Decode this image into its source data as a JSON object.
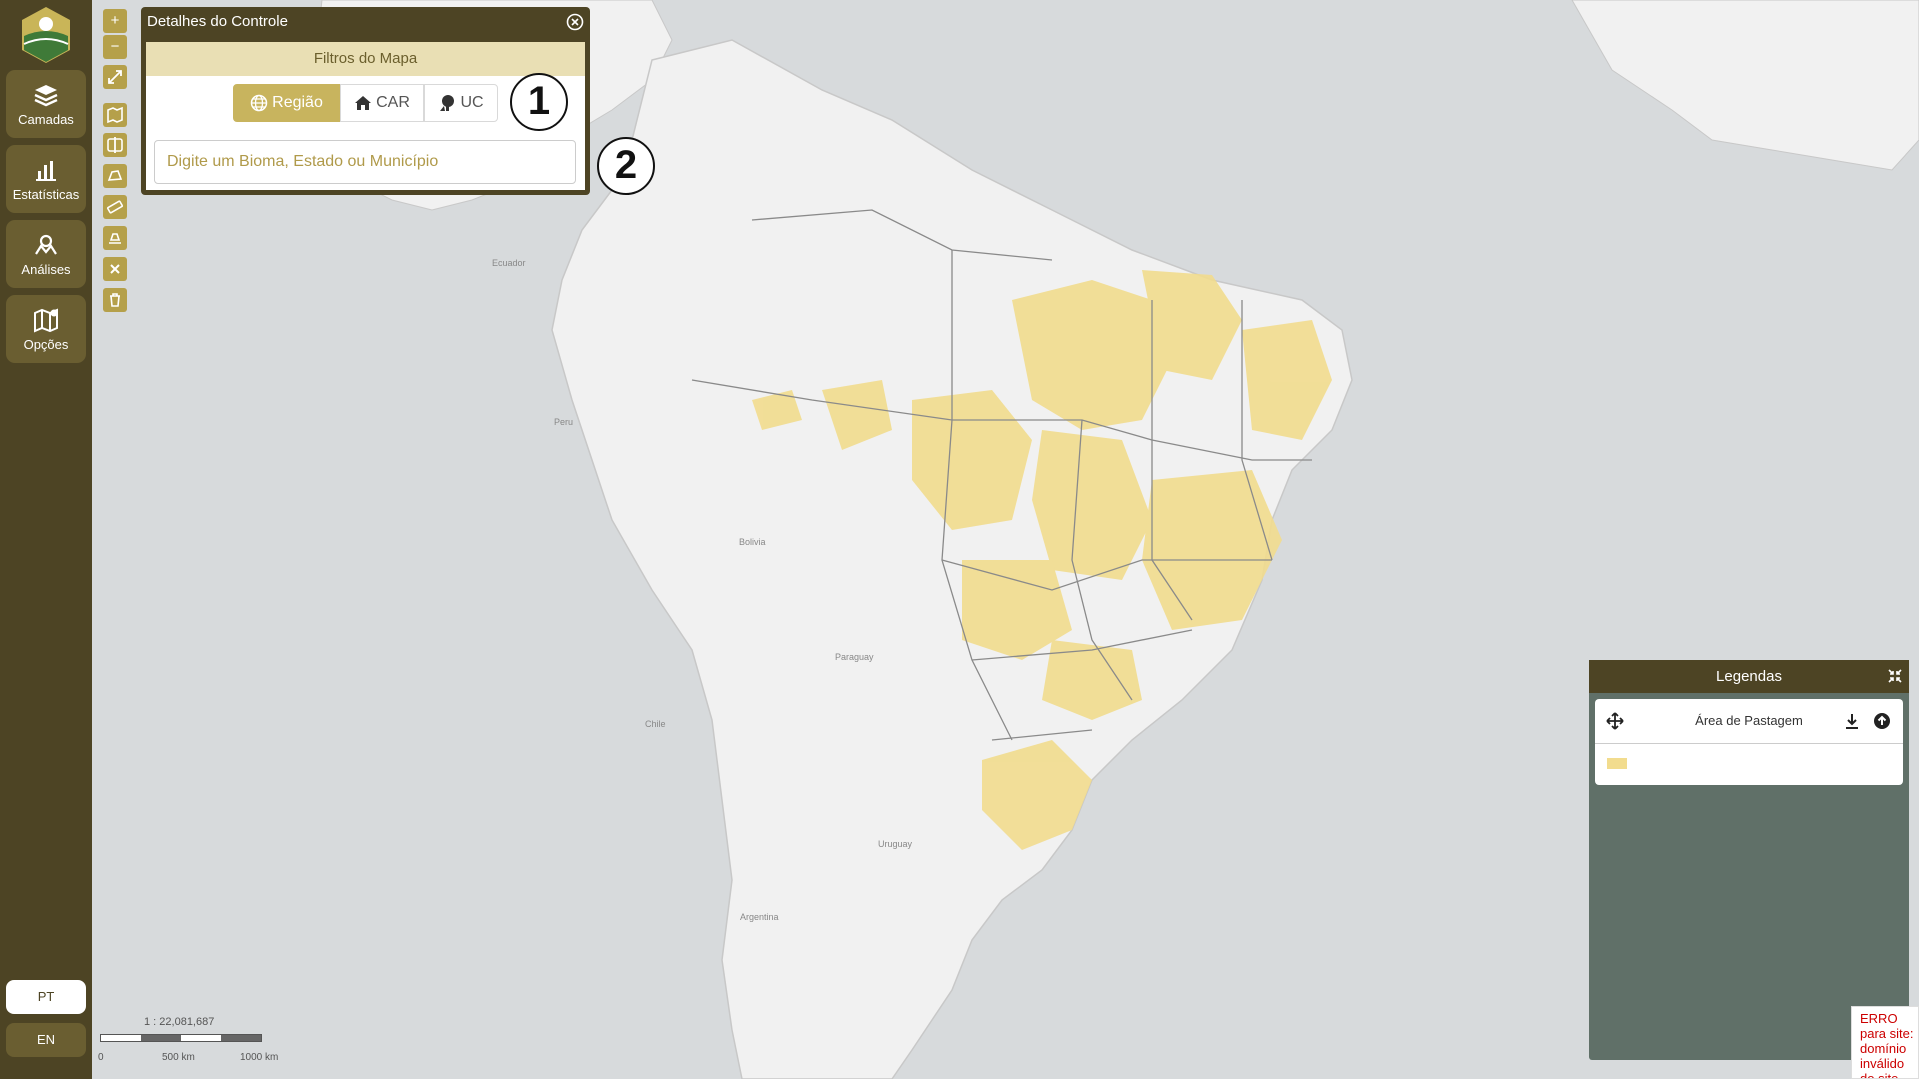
{
  "sidebar": {
    "items": [
      {
        "label": "Camadas",
        "icon": "layers-icon"
      },
      {
        "label": "Estatísticas",
        "icon": "bar-chart-icon"
      },
      {
        "label": "Análises",
        "icon": "analysis-icon"
      },
      {
        "label": "Opções",
        "icon": "map-settings-icon"
      }
    ],
    "languages": [
      "PT",
      "EN"
    ],
    "selected_language": "PT"
  },
  "toolbar": {
    "zoom_in": "+",
    "zoom_out": "−",
    "tools": [
      "fullscreen-icon",
      "map-toggle-icon",
      "swipe-compare-icon",
      "draw-area-icon",
      "measure-icon",
      "upload-area-icon",
      "close-icon",
      "trash-icon"
    ]
  },
  "control_panel": {
    "title": "Detalhes do Controle",
    "filters_title": "Filtros do Mapa",
    "tabs": [
      "Região",
      "CAR",
      "UC"
    ],
    "active_tab": "Região",
    "search_placeholder": "Digite um Bioma, Estado ou Município",
    "search_value": ""
  },
  "markers": [
    "1",
    "2"
  ],
  "legend": {
    "title": "Legendas",
    "layer": "Área de Pastagem",
    "swatch_color": "#f2dc8e"
  },
  "map": {
    "scale_ratio": "1 : 22,081,687",
    "scale_labels": [
      "0",
      "500 km",
      "1000 km"
    ],
    "highlight_color": "#f2dc8e",
    "visible_labels": [
      "Peru",
      "Bolivia",
      "Paraguay",
      "Chile",
      "Argentina",
      "Uruguay",
      "Ecuador"
    ]
  },
  "error_message": "ERRO para site: domínio inválido do site"
}
